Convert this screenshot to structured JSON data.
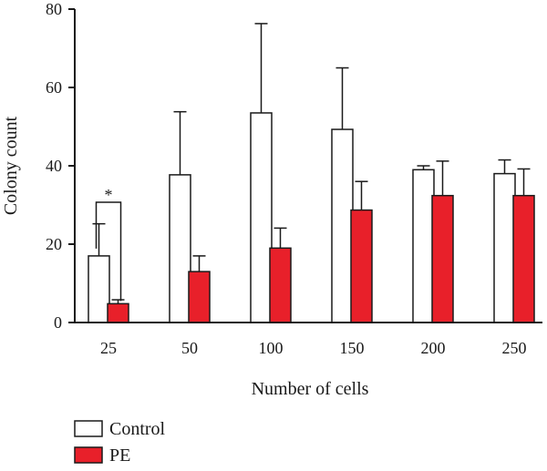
{
  "chart_data": {
    "type": "bar",
    "title": "",
    "xlabel": "Number of cells",
    "ylabel": "Colony count",
    "ylim": [
      0,
      80
    ],
    "yticks": [
      0,
      20,
      40,
      60,
      80
    ],
    "categories": [
      "25",
      "50",
      "100",
      "150",
      "200",
      "250"
    ],
    "series": [
      {
        "name": "Control",
        "color": "#ffffff",
        "values": [
          17,
          37.7,
          53.5,
          49.3,
          39,
          38
        ],
        "error_upper": [
          25.2,
          53.8,
          76.3,
          65,
          40,
          41.5
        ]
      },
      {
        "name": "PE",
        "color": "#e8202a",
        "values": [
          4.8,
          13,
          19,
          28.7,
          32.4,
          32.4
        ],
        "error_upper": [
          5.8,
          17,
          24.1,
          36,
          41.2,
          39.2
        ]
      }
    ],
    "annotations": [
      {
        "type": "significance-bracket",
        "text": "*",
        "category": "25"
      }
    ],
    "legend": {
      "position": "bottom-left"
    },
    "grid": false
  }
}
